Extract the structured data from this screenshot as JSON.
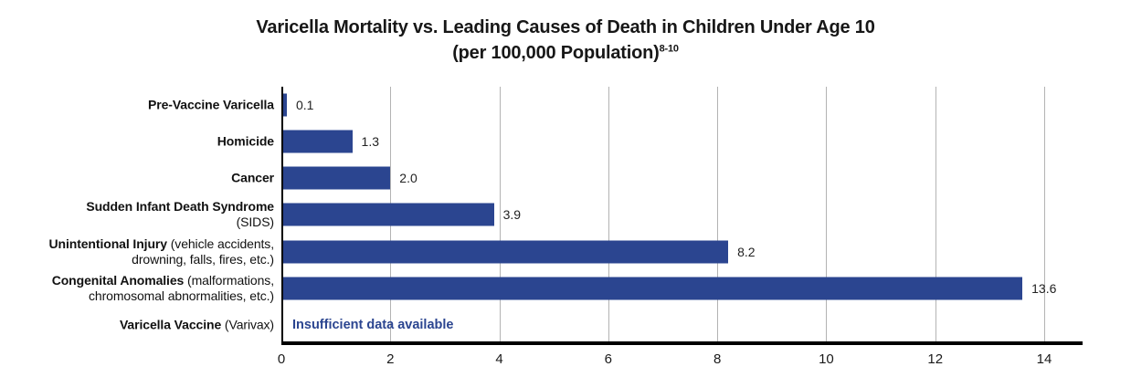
{
  "title": {
    "line1": "Varicella Mortality vs. Leading Causes of Death in Children Under Age 10",
    "line2": "(per 100,000 Population)",
    "superscript": "8-10"
  },
  "chart_data": {
    "type": "bar",
    "orientation": "horizontal",
    "title": "Varicella Mortality vs. Leading Causes of Death in Children Under Age 10 (per 100,000 Population)",
    "title_reference_superscript": "8-10",
    "xlabel": "",
    "ylabel": "",
    "xlim": [
      0,
      14
    ],
    "x_ticks": [
      0,
      2,
      4,
      6,
      8,
      10,
      12,
      14
    ],
    "grid": "vertical",
    "bar_color": "#2B4590",
    "gridline_color": "#b3b3b3",
    "axis_color": "#000000",
    "annotation_color": "#2B4590",
    "rows": [
      {
        "category_bold": "Pre-Vaccine Varicella",
        "category_note": "",
        "value": 0.1,
        "value_label": "0.1"
      },
      {
        "category_bold": "Homicide",
        "category_note": "",
        "value": 1.3,
        "value_label": "1.3"
      },
      {
        "category_bold": "Cancer",
        "category_note": "",
        "value": 2.0,
        "value_label": "2.0"
      },
      {
        "category_bold": "Sudden Infant Death Syndrome",
        "category_note": "(SIDS)",
        "note_block": true,
        "value": 3.9,
        "value_label": "3.9"
      },
      {
        "category_bold": "Unintentional Injury",
        "category_note": "(vehicle accidents, drowning, falls, fires, etc.)",
        "value": 8.2,
        "value_label": "8.2"
      },
      {
        "category_bold": "Congenital Anomalies",
        "category_note": "(malforma­tions, chromosomal abnormalities, etc.)",
        "value": 13.6,
        "value_label": "13.6"
      },
      {
        "category_bold": "Varicella Vaccine",
        "category_note": "(Varivax)",
        "value": null,
        "value_label": "",
        "annotation": "Insufficient data available"
      }
    ]
  }
}
